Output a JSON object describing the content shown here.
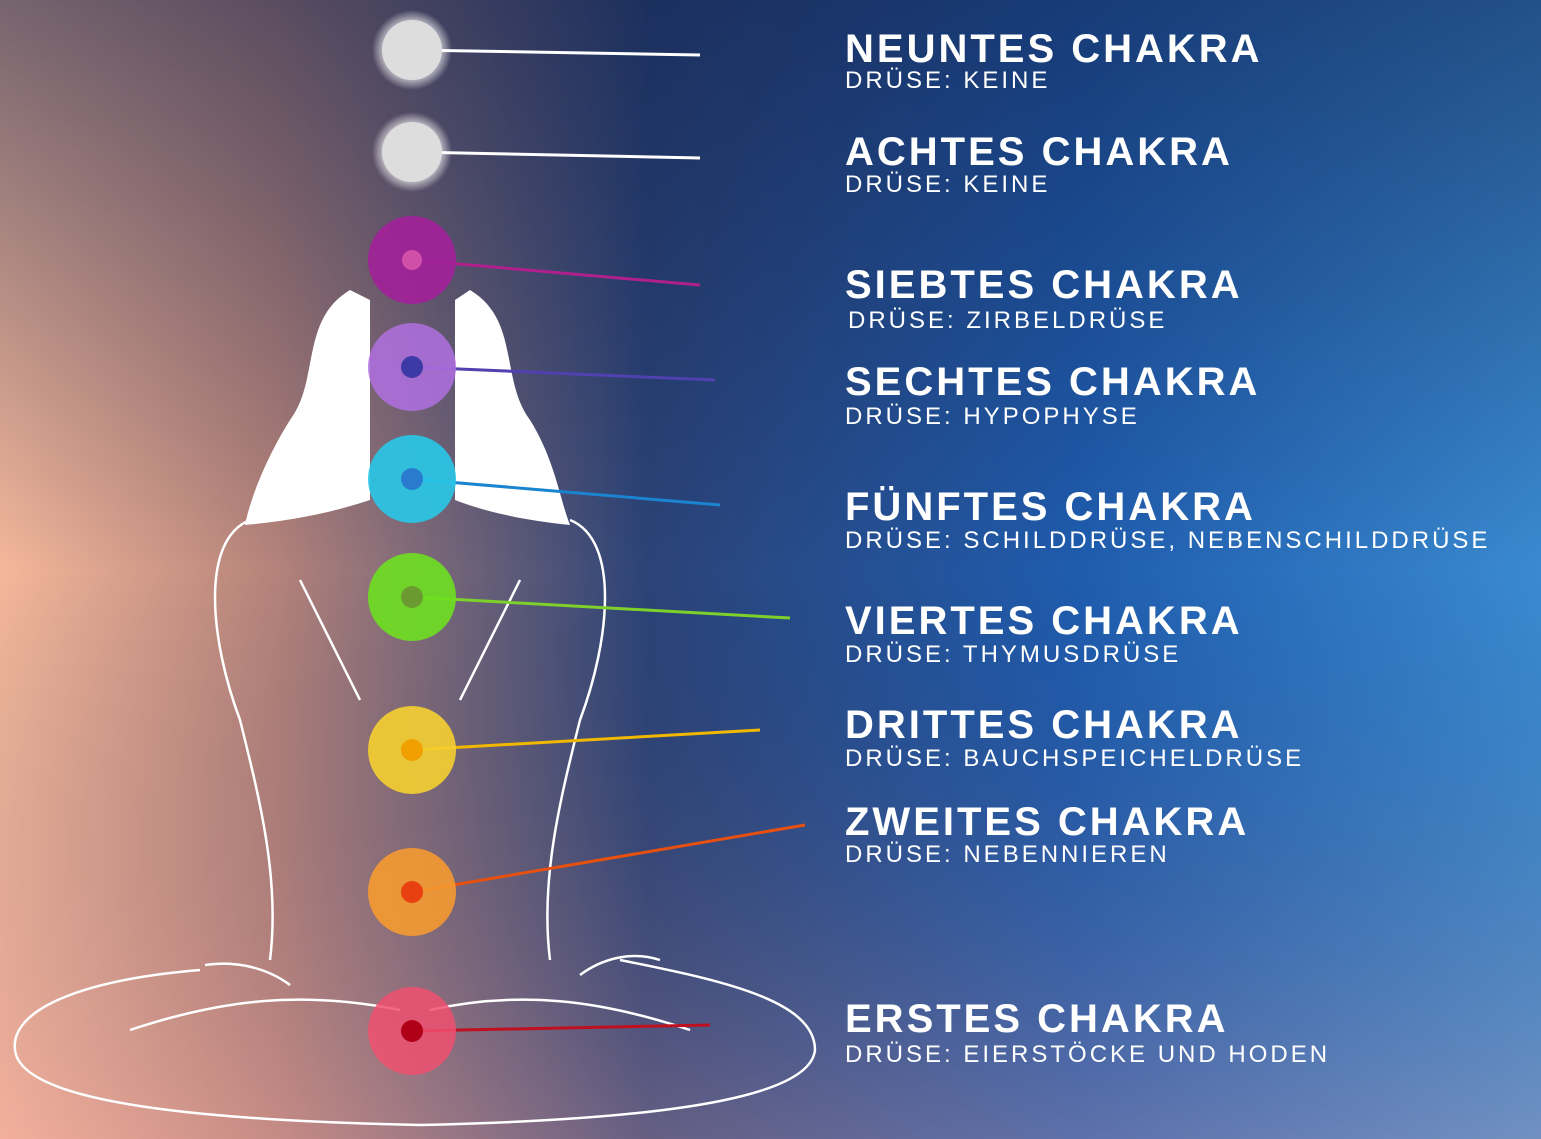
{
  "chakras": [
    {
      "name": "NEUNTES CHAKRA",
      "gland": "DRÜSE: KEINE"
    },
    {
      "name": "ACHTES CHAKRA",
      "gland": "DRÜSE: KEINE"
    },
    {
      "name": "SIEBTES CHAKRA",
      "gland": "DRÜSE: ZIRBELDRÜSE"
    },
    {
      "name": "SECHTES CHAKRA",
      "gland": "DRÜSE: HYPOPHYSE"
    },
    {
      "name": "FÜNFTES CHAKRA",
      "gland": "DRÜSE: SCHILDDRÜSE, NEBENSCHILDDRÜSE"
    },
    {
      "name": "VIERTES CHAKRA",
      "gland": "DRÜSE: THYMUSDRÜSE"
    },
    {
      "name": "DRITTES CHAKRA",
      "gland": "DRÜSE: BAUCHSPEICHELDRÜSE"
    },
    {
      "name": "ZWEITES CHAKRA",
      "gland": "DRÜSE: NEBENNIEREN"
    },
    {
      "name": "ERSTES CHAKRA",
      "gland": "DRÜSE: EIERSTÖCKE UND HODEN"
    }
  ]
}
